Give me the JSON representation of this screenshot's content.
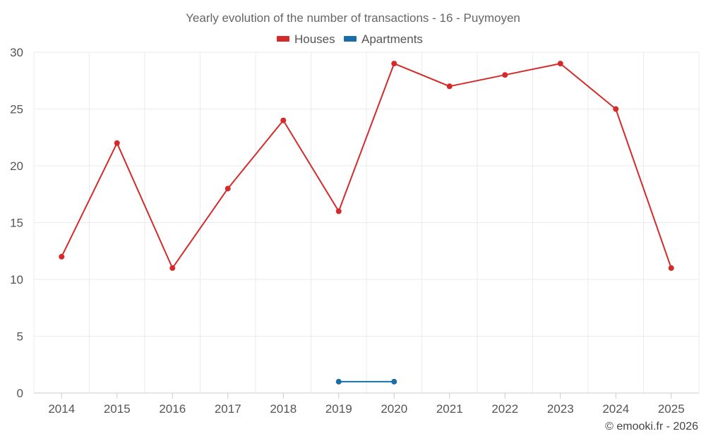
{
  "chart_data": {
    "type": "line",
    "title": "Yearly evolution of the number of transactions - 16 - Puymoyen",
    "categories": [
      "2014",
      "2015",
      "2016",
      "2017",
      "2018",
      "2019",
      "2020",
      "2021",
      "2022",
      "2023",
      "2024",
      "2025"
    ],
    "series": [
      {
        "name": "Houses",
        "color": "#d42a2a",
        "values": [
          12,
          22,
          11,
          18,
          24,
          16,
          29,
          27,
          28,
          29,
          25,
          11
        ]
      },
      {
        "name": "Apartments",
        "color": "#1a6ea8",
        "values": [
          null,
          null,
          null,
          null,
          null,
          1,
          1,
          null,
          null,
          null,
          null,
          null
        ]
      }
    ],
    "ylim": [
      0,
      30
    ],
    "yticks": [
      "0",
      "5",
      "10",
      "15",
      "20",
      "25",
      "30"
    ],
    "xlabel": "",
    "ylabel": "",
    "grid": true,
    "legend_position": "top-center"
  },
  "credit": "© emooki.fr - 2026"
}
